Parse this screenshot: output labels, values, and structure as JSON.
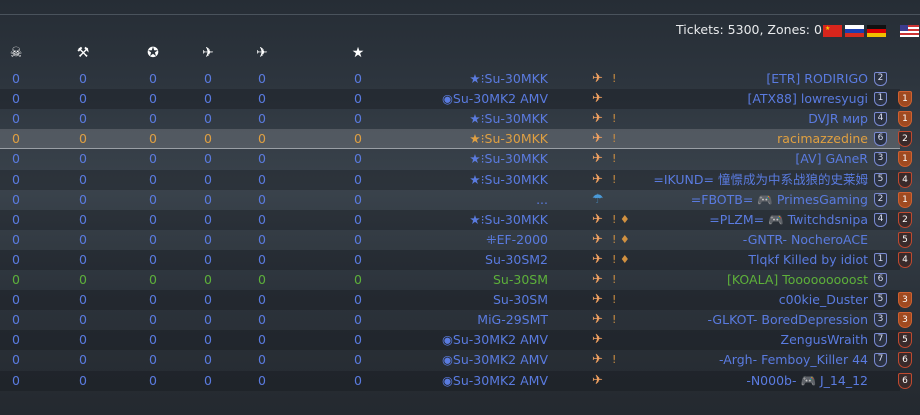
{
  "header": {
    "tickets_text": "Tickets: 5300, Zones: 0",
    "flags": [
      "china-flag",
      "russia-flag",
      "germany-flag",
      "usa-flag"
    ],
    "columns": [
      {
        "icon": "skull-icon",
        "glyph": "☠"
      },
      {
        "icon": "ground-kills-icon",
        "glyph": "⚒"
      },
      {
        "icon": "assist-laurel-icon",
        "glyph": "✪"
      },
      {
        "icon": "ground-target-icon",
        "glyph": "✈"
      },
      {
        "icon": "air-kills-icon",
        "glyph": "✈"
      },
      {
        "icon": "score-star-icon",
        "glyph": "★"
      }
    ]
  },
  "colors": {
    "ally": "#5a7be0",
    "self": "#e0a040",
    "squad": "#5db03a",
    "aircraft": "#f0a060"
  },
  "players": [
    {
      "stats": [
        "0",
        "0",
        "0",
        "0",
        "0",
        "0"
      ],
      "prefix": "★⁝",
      "vehicle": "Su-30MKK",
      "weapons": "!",
      "name": "[ETR] RODIRIGO",
      "rank": "2",
      "other_rank": "",
      "other_bronze": false,
      "state": "ally"
    },
    {
      "stats": [
        "0",
        "0",
        "0",
        "0",
        "0",
        "0"
      ],
      "prefix": "◉",
      "vehicle": "Su-30MK2 AMV",
      "weapons": "",
      "name": "[ATX88] lowresyugi",
      "rank": "1",
      "other_rank": "1",
      "other_bronze": true,
      "state": "ally"
    },
    {
      "stats": [
        "0",
        "0",
        "0",
        "0",
        "0",
        "0"
      ],
      "prefix": "★⁝",
      "vehicle": "Su-30MKK",
      "weapons": "!",
      "name": "DVJR мир",
      "rank": "4",
      "other_rank": "1",
      "other_bronze": true,
      "state": "ally"
    },
    {
      "stats": [
        "0",
        "0",
        "0",
        "0",
        "0",
        "0"
      ],
      "prefix": "★⁝",
      "vehicle": "Su-30MKK",
      "weapons": "!",
      "name": "racimazzedine",
      "rank": "6",
      "other_rank": "2",
      "other_bronze": false,
      "state": "self"
    },
    {
      "stats": [
        "0",
        "0",
        "0",
        "0",
        "0",
        "0"
      ],
      "prefix": "★⁝",
      "vehicle": "Su-30MKK",
      "weapons": "!",
      "name": "[AV] GAneR",
      "rank": "3",
      "other_rank": "1",
      "other_bronze": true,
      "state": "ally"
    },
    {
      "stats": [
        "0",
        "0",
        "0",
        "0",
        "0",
        "0"
      ],
      "prefix": "★⁝",
      "vehicle": "Su-30MKK",
      "weapons": "!",
      "name": "=IKUND= 憧憬成为中系战狼的史莱姆",
      "rank": "5",
      "other_rank": "4",
      "other_bronze": false,
      "state": "ally"
    },
    {
      "stats": [
        "0",
        "0",
        "0",
        "0",
        "0",
        "0"
      ],
      "prefix": "",
      "vehicle": "...",
      "weapons": "",
      "parachute": true,
      "name": "=FBOTB= 🎮 PrimesGaming",
      "rank": "2",
      "other_rank": "1",
      "other_bronze": true,
      "state": "ally"
    },
    {
      "stats": [
        "0",
        "0",
        "0",
        "0",
        "0",
        "0"
      ],
      "prefix": "★⁝",
      "vehicle": "Su-30MKK",
      "weapons": "! ♦",
      "name": "=PLZM= 🎮 Twitchdsnipa",
      "rank": "4",
      "other_rank": "2",
      "other_bronze": false,
      "state": "ally"
    },
    {
      "stats": [
        "0",
        "0",
        "0",
        "0",
        "0",
        "0"
      ],
      "prefix": "⁜",
      "vehicle": "EF-2000",
      "weapons": "! ♦",
      "name": "-GNTR- NocheroACE",
      "rank": "",
      "other_rank": "5",
      "other_bronze": false,
      "state": "ally"
    },
    {
      "stats": [
        "0",
        "0",
        "0",
        "0",
        "0",
        "0"
      ],
      "prefix": "",
      "vehicle": "Su-30SM2",
      "weapons": "! ♦",
      "name": "Tlqkf Killed by idiot",
      "rank": "1",
      "other_rank": "4",
      "other_bronze": false,
      "state": "ally"
    },
    {
      "stats": [
        "0",
        "0",
        "0",
        "0",
        "0",
        "0"
      ],
      "prefix": "",
      "vehicle": "Su-30SM",
      "weapons": "!",
      "name": "[KOALA] Tooooooooost",
      "rank": "6",
      "other_rank": "",
      "other_bronze": false,
      "state": "squad"
    },
    {
      "stats": [
        "0",
        "0",
        "0",
        "0",
        "0",
        "0"
      ],
      "prefix": "",
      "vehicle": "Su-30SM",
      "weapons": "!",
      "name": "c00kie_Duster",
      "rank": "5",
      "other_rank": "3",
      "other_bronze": true,
      "state": "ally"
    },
    {
      "stats": [
        "0",
        "0",
        "0",
        "0",
        "0",
        "0"
      ],
      "prefix": "",
      "vehicle": "MiG-29SMT",
      "weapons": "!",
      "name": "-GLKOT- BoredDepression",
      "rank": "3",
      "other_rank": "3",
      "other_bronze": true,
      "state": "ally"
    },
    {
      "stats": [
        "0",
        "0",
        "0",
        "0",
        "0",
        "0"
      ],
      "prefix": "◉",
      "vehicle": "Su-30MK2 AMV",
      "weapons": "",
      "name": "ZengusWraith",
      "rank": "7",
      "other_rank": "5",
      "other_bronze": false,
      "state": "ally"
    },
    {
      "stats": [
        "0",
        "0",
        "0",
        "0",
        "0",
        "0"
      ],
      "prefix": "◉",
      "vehicle": "Su-30MK2 AMV",
      "weapons": "!",
      "name": "-Argh- Femboy_Killer 44",
      "rank": "7",
      "other_rank": "6",
      "other_bronze": false,
      "state": "ally"
    },
    {
      "stats": [
        "0",
        "0",
        "0",
        "0",
        "0",
        "0"
      ],
      "prefix": "◉",
      "vehicle": "Su-30MK2 AMV",
      "weapons": "",
      "name": "-N000b- 🎮 J_14_12",
      "rank": "",
      "other_rank": "6",
      "other_bronze": false,
      "state": "ally"
    }
  ]
}
